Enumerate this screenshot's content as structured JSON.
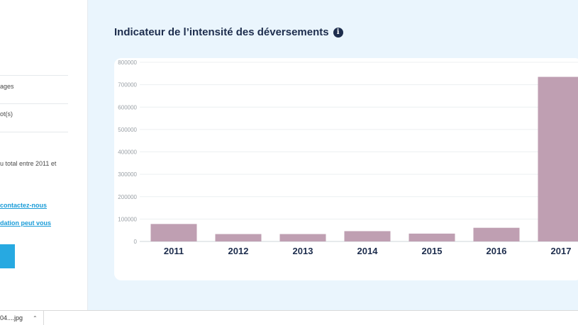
{
  "left_panel": {
    "text1": "ages",
    "text2": "ot(s)",
    "text3": "u total entre 2011 et",
    "link1": "contactez-nous",
    "link2": "dation peut vous"
  },
  "title": "Indicateur de l’intensité des déversements",
  "info_icon": "info-circle-icon",
  "colors": {
    "bar": "#bf9fb2",
    "title": "#1d2d4d",
    "background": "#eaf5fd",
    "link": "#1a9cd8"
  },
  "chart_data": {
    "type": "bar",
    "title": "",
    "xlabel": "",
    "ylabel": "",
    "categories": [
      "2011",
      "2012",
      "2013",
      "2014",
      "2015",
      "2016",
      "2017"
    ],
    "values": [
      78000,
      33000,
      33000,
      46000,
      35000,
      61000,
      735000
    ],
    "ylim": [
      0,
      800000
    ],
    "yticks": [
      "0",
      "100000",
      "200000",
      "300000",
      "400000",
      "500000",
      "600000",
      "700000",
      "800000"
    ],
    "grid": true
  },
  "download_bar": {
    "file_name": "04....jpg",
    "chevron": "chevron-up-icon"
  }
}
